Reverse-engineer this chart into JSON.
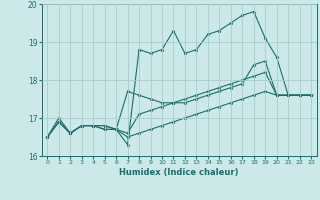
{
  "title": "",
  "xlabel": "Humidex (Indice chaleur)",
  "ylabel": "",
  "background_color": "#cce8e8",
  "grid_color": "#aacccc",
  "line_color": "#1a6e6e",
  "xlim": [
    -0.5,
    23.5
  ],
  "ylim": [
    16,
    20
  ],
  "xticks": [
    0,
    1,
    2,
    3,
    4,
    5,
    6,
    7,
    8,
    9,
    10,
    11,
    12,
    13,
    14,
    15,
    16,
    17,
    18,
    19,
    20,
    21,
    22,
    23
  ],
  "yticks": [
    16,
    17,
    18,
    19,
    20
  ],
  "series": {
    "line1": [
      16.5,
      16.9,
      16.6,
      16.8,
      16.8,
      16.8,
      16.7,
      16.3,
      18.8,
      18.7,
      18.8,
      19.3,
      18.7,
      18.8,
      19.2,
      19.3,
      19.5,
      19.7,
      19.8,
      19.1,
      18.6,
      17.6,
      17.6,
      17.6
    ],
    "line2": [
      16.5,
      16.9,
      16.6,
      16.8,
      16.8,
      16.8,
      16.7,
      17.7,
      17.6,
      17.5,
      17.4,
      17.4,
      17.4,
      17.5,
      17.6,
      17.7,
      17.8,
      17.9,
      18.4,
      18.5,
      17.6,
      17.6,
      17.6,
      17.6
    ],
    "line3": [
      16.5,
      16.9,
      16.6,
      16.8,
      16.8,
      16.7,
      16.7,
      16.6,
      17.1,
      17.2,
      17.3,
      17.4,
      17.5,
      17.6,
      17.7,
      17.8,
      17.9,
      18.0,
      18.1,
      18.2,
      17.6,
      17.6,
      17.6,
      17.6
    ],
    "line4": [
      16.5,
      17.0,
      16.6,
      16.8,
      16.8,
      16.7,
      16.7,
      16.5,
      16.6,
      16.7,
      16.8,
      16.9,
      17.0,
      17.1,
      17.2,
      17.3,
      17.4,
      17.5,
      17.6,
      17.7,
      17.6,
      17.6,
      17.6,
      17.6
    ]
  }
}
